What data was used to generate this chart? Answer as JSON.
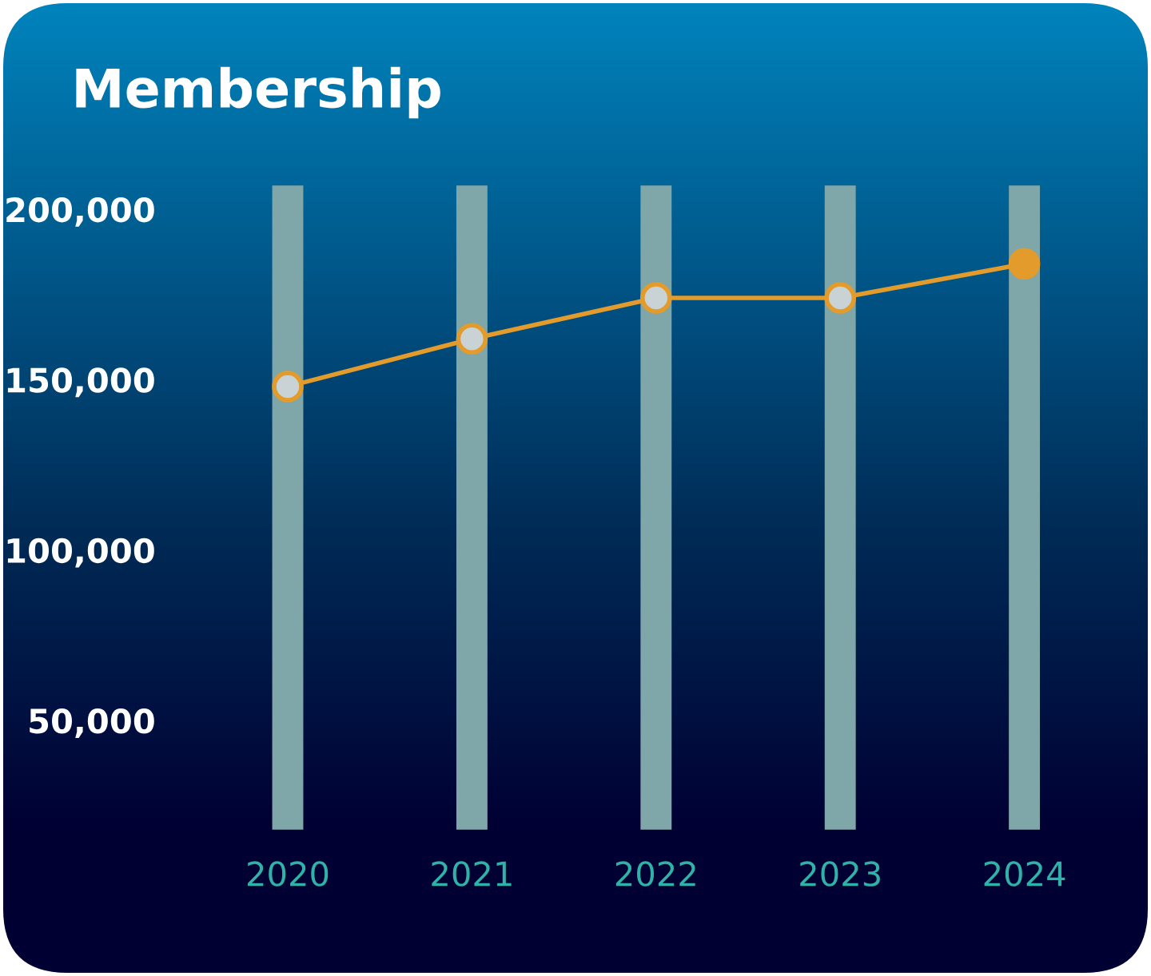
{
  "chart_data": {
    "type": "line",
    "title": "Membership",
    "categories": [
      "2020",
      "2021",
      "2022",
      "2023",
      "2024"
    ],
    "series": [
      {
        "color": "#e39b2b",
        "colors": [
          "#c9d3d6",
          "#c9d3d6",
          "#c9d3d6",
          "#c9d3d6",
          "#e39b2b"
        ],
        "values": [
          148000,
          162000,
          174000,
          174000,
          184000
        ]
      }
    ],
    "ylim": [
      18000,
      207000
    ],
    "yticks": [
      {
        "value": 50000,
        "label": "50,000"
      },
      {
        "value": 100000,
        "label": "100,000"
      },
      {
        "value": 150000,
        "label": "150,000"
      },
      {
        "value": 200000,
        "label": "200,000"
      }
    ],
    "grid": "x",
    "marker": "circle",
    "line_style": "solid",
    "legend": false
  }
}
